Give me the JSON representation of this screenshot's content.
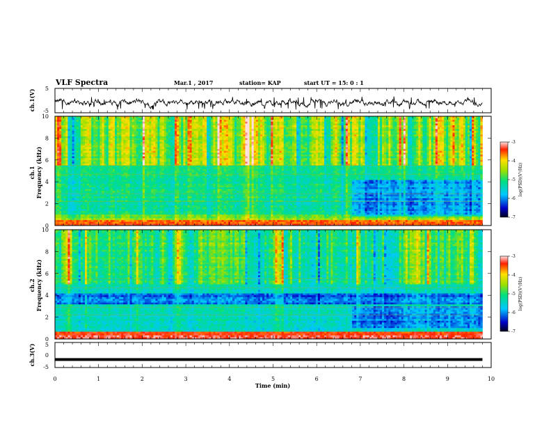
{
  "header": {
    "title": "VLF Spectra",
    "date": "Mar.1  , 2017",
    "station": "station= KAP",
    "start": "start  UT  =   15: 0  : 1"
  },
  "chart_data": [
    {
      "type": "line",
      "panel": "ch1-waveform",
      "ylabel": "ch.1(V)",
      "xlim": [
        0,
        10
      ],
      "ylim": [
        -5,
        5
      ],
      "yticks": [
        "5",
        "-5"
      ],
      "data_extent_min": 9.8,
      "level": -0.8,
      "fluctuation_range": [
        -3,
        1
      ]
    },
    {
      "type": "heatmap",
      "panel": "ch1-spectrogram",
      "ylabel": "ch.1\nFrequency  (kHz)",
      "xlim": [
        0,
        10
      ],
      "ylim": [
        0,
        10
      ],
      "yticks": [
        "0",
        "2",
        "4",
        "6",
        "8",
        "10"
      ],
      "data_extent_min": 9.8,
      "bands_khz": [
        {
          "from": 5.5,
          "to": 10,
          "level": "high, bursty"
        },
        {
          "from": 0.5,
          "to": 5.5,
          "level": "moderate"
        },
        {
          "from": 0,
          "to": 0.5,
          "level": "high"
        }
      ],
      "colorbar": {
        "label": "log(PSD)(V²/Hz)",
        "ticks": [
          "-3",
          "-4",
          "-5",
          "-6",
          "-7"
        ],
        "range": [
          -7,
          -3
        ]
      }
    },
    {
      "type": "heatmap",
      "panel": "ch2-spectrogram",
      "ylabel": "ch.2\nFrequency  (kHz)",
      "xlim": [
        0,
        10
      ],
      "ylim": [
        0,
        10
      ],
      "yticks": [
        "0",
        "2",
        "4",
        "6",
        "8",
        "10"
      ],
      "data_extent_min": 9.8,
      "bands_khz": [
        {
          "from": 5,
          "to": 10,
          "level": "moderate, bursty"
        },
        {
          "from": 0.6,
          "to": 5,
          "level": "low to moderate"
        },
        {
          "from": 0,
          "to": 0.6,
          "level": "high"
        }
      ],
      "colorbar": {
        "label": "log(PSD)(V²/Hz)",
        "ticks": [
          "-3",
          "-4",
          "-5",
          "-6",
          "-7"
        ],
        "range": [
          -7,
          -3
        ]
      }
    },
    {
      "type": "line",
      "panel": "ch3-waveform",
      "ylabel": "ch.3(V)",
      "xlabel": "Time  (min)",
      "xlim": [
        0,
        10
      ],
      "ylim": [
        -5,
        5
      ],
      "yticks": [
        "5",
        "0",
        "-5"
      ],
      "xticks": [
        "0",
        "1",
        "2",
        "3",
        "4",
        "5",
        "6",
        "7",
        "8",
        "9",
        "10"
      ],
      "data_extent_min": 9.8,
      "level": -1.8
    }
  ]
}
